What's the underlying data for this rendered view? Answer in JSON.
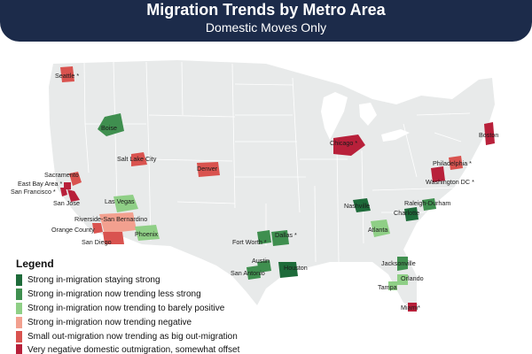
{
  "header": {
    "title": "Migration Trends by Metro Area",
    "subtitle": "Domestic Moves Only"
  },
  "colors": {
    "header_bg": "#1c2b4a",
    "land": "#e8eaea",
    "state_border": "#ffffff",
    "strong_in_strong": "#1e6b3a",
    "strong_in_less_strong": "#3f8f4f",
    "strong_in_barely_positive": "#8fcf86",
    "strong_in_negative": "#f2a08f",
    "small_out_big_out": "#d9534f",
    "very_negative": "#b8203a"
  },
  "metros": [
    {
      "name": "Seattle *",
      "category": "small_out_big_out"
    },
    {
      "name": "Boise",
      "category": "strong_in_less_strong"
    },
    {
      "name": "Salt Lake City",
      "category": "small_out_big_out"
    },
    {
      "name": "Denver",
      "category": "small_out_big_out"
    },
    {
      "name": "Sacramento",
      "category": "small_out_big_out"
    },
    {
      "name": "East Bay Area *",
      "category": "very_negative"
    },
    {
      "name": "San Francisco *",
      "category": "very_negative"
    },
    {
      "name": "San Jose",
      "category": "very_negative"
    },
    {
      "name": "Las Vegas",
      "category": "strong_in_barely_positive"
    },
    {
      "name": "Riverside-San Bernardino",
      "category": "strong_in_negative"
    },
    {
      "name": "Orange County",
      "category": "small_out_big_out"
    },
    {
      "name": "San Diego",
      "category": "small_out_big_out"
    },
    {
      "name": "Phoenix",
      "category": "strong_in_barely_positive"
    },
    {
      "name": "Chicago *",
      "category": "very_negative"
    },
    {
      "name": "Boston",
      "category": "very_negative"
    },
    {
      "name": "Philadelphia *",
      "category": "small_out_big_out"
    },
    {
      "name": "Washington DC *",
      "category": "very_negative"
    },
    {
      "name": "Nashville",
      "category": "strong_in_strong"
    },
    {
      "name": "Raleigh-Durham",
      "category": "strong_in_less_strong"
    },
    {
      "name": "Charlotte",
      "category": "strong_in_strong"
    },
    {
      "name": "Atlanta",
      "category": "strong_in_barely_positive"
    },
    {
      "name": "Fort Worth *",
      "category": "strong_in_less_strong"
    },
    {
      "name": "Dallas *",
      "category": "strong_in_less_strong"
    },
    {
      "name": "Austin",
      "category": "strong_in_less_strong"
    },
    {
      "name": "San Antonio",
      "category": "strong_in_less_strong"
    },
    {
      "name": "Houston",
      "category": "strong_in_strong"
    },
    {
      "name": "Jacksonville",
      "category": "strong_in_less_strong"
    },
    {
      "name": "Orlando",
      "category": "strong_in_barely_positive"
    },
    {
      "name": "Tampa",
      "category": "strong_in_barely_positive"
    },
    {
      "name": "Miami*",
      "category": "very_negative"
    }
  ],
  "legend": {
    "title": "Legend",
    "items": [
      {
        "label": "Strong in-migration staying strong",
        "color": "#1e6b3a"
      },
      {
        "label": "Strong in-migration now trending less strong",
        "color": "#3f8f4f"
      },
      {
        "label": "Strong in-migration now trending to barely positive",
        "color": "#8fcf86"
      },
      {
        "label": "Strong in-migration now trending negative",
        "color": "#f2a08f"
      },
      {
        "label": "Small out-migration now trending as big out-migration",
        "color": "#d9534f"
      },
      {
        "label": "Very negative domestic outmigration, somewhat offset",
        "color": "#b8203a"
      }
    ]
  }
}
